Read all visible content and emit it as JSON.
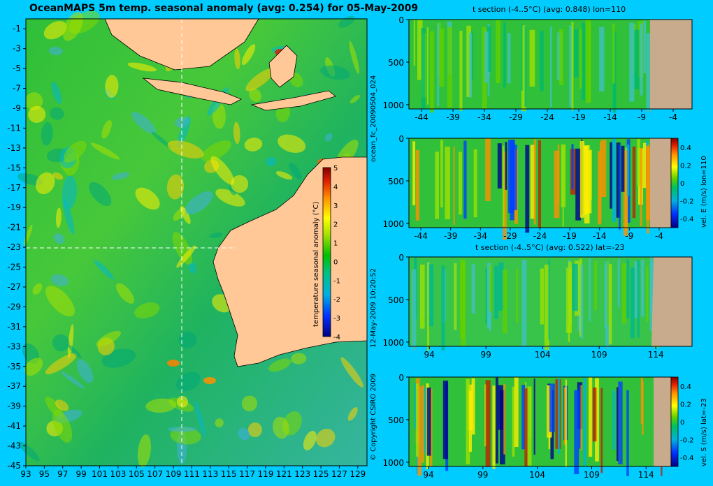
{
  "main_title": "OceanMAPS 5m temp. seasonal anomaly (avg: 0.254) for 05-May-2009",
  "side_label_run": "ocean_fc_20090504_024",
  "side_label_date": "12-May-2009 10:20:52",
  "side_label_copyright": "© Copyright CSIRO 2009",
  "colors": {
    "background": "#00ccff",
    "land": "#ffc896",
    "section_land": "#c8aa8c",
    "crosshair": "#ffffff"
  },
  "chart_data": [
    {
      "type": "heatmap",
      "name": "map",
      "title": "OceanMAPS 5m temp. seasonal anomaly (avg: 0.254) for 05-May-2009",
      "xlim": [
        93,
        130
      ],
      "ylim": [
        -45,
        0
      ],
      "x_ticks": [
        "93",
        "95",
        "97",
        "99",
        "101",
        "103",
        "105",
        "107",
        "109",
        "111",
        "113",
        "115",
        "117",
        "119",
        "121",
        "123",
        "125",
        "127",
        "129"
      ],
      "y_ticks": [
        "-1",
        "-3",
        "-5",
        "-7",
        "-9",
        "-11",
        "-13",
        "-15",
        "-17",
        "-19",
        "-21",
        "-23",
        "-25",
        "-27",
        "-29",
        "-31",
        "-33",
        "-35",
        "-37",
        "-39",
        "-41",
        "-43",
        "-45"
      ],
      "crosshair_lon": 110,
      "crosshair_lat": -23,
      "colorbar": {
        "label": "temperature seasonal anomaly (°C)",
        "ticks": [
          "5",
          "4",
          "3",
          "2",
          "1",
          "0",
          "-1",
          "-2",
          "-3",
          "-4"
        ],
        "range": [
          -4,
          5
        ]
      }
    },
    {
      "type": "heatmap",
      "name": "t-section-lon",
      "title": "t section (-4..5°C) (avg: 0.848) lon=110",
      "x_ticks": [
        "-44",
        "-39",
        "-34",
        "-29",
        "-24",
        "-19",
        "-14",
        "-9",
        "-4"
      ],
      "y_ticks": [
        "0",
        "500",
        "1000"
      ]
    },
    {
      "type": "heatmap",
      "name": "vel-e-section",
      "title": "",
      "x_ticks": [
        "-44",
        "-39",
        "-34",
        "-29",
        "-24",
        "-19",
        "-14",
        "-9",
        "-4"
      ],
      "y_ticks": [
        "0",
        "500",
        "1000"
      ],
      "colorbar": {
        "label": "vel. E (m/s) lon=110",
        "ticks": [
          "0.4",
          "0.2",
          "0",
          "-0.2",
          "-0.4"
        ],
        "range": [
          -0.5,
          0.5
        ]
      }
    },
    {
      "type": "heatmap",
      "name": "t-section-lat",
      "title": "t section (-4..5°C) (avg: 0.522) lat=-23",
      "x_ticks": [
        "94",
        "99",
        "104",
        "109",
        "114"
      ],
      "y_ticks": [
        "0",
        "500",
        "1000"
      ]
    },
    {
      "type": "heatmap",
      "name": "vel-s-section",
      "title": "",
      "x_ticks": [
        "94",
        "99",
        "104",
        "109",
        "114"
      ],
      "y_ticks": [
        "0",
        "500",
        "1000"
      ],
      "colorbar": {
        "label": "vel. S (m/s) lat=-23",
        "ticks": [
          "0.4",
          "0.2",
          "0",
          "-0.2",
          "-0.4"
        ],
        "range": [
          -0.5,
          0.5
        ]
      }
    }
  ]
}
